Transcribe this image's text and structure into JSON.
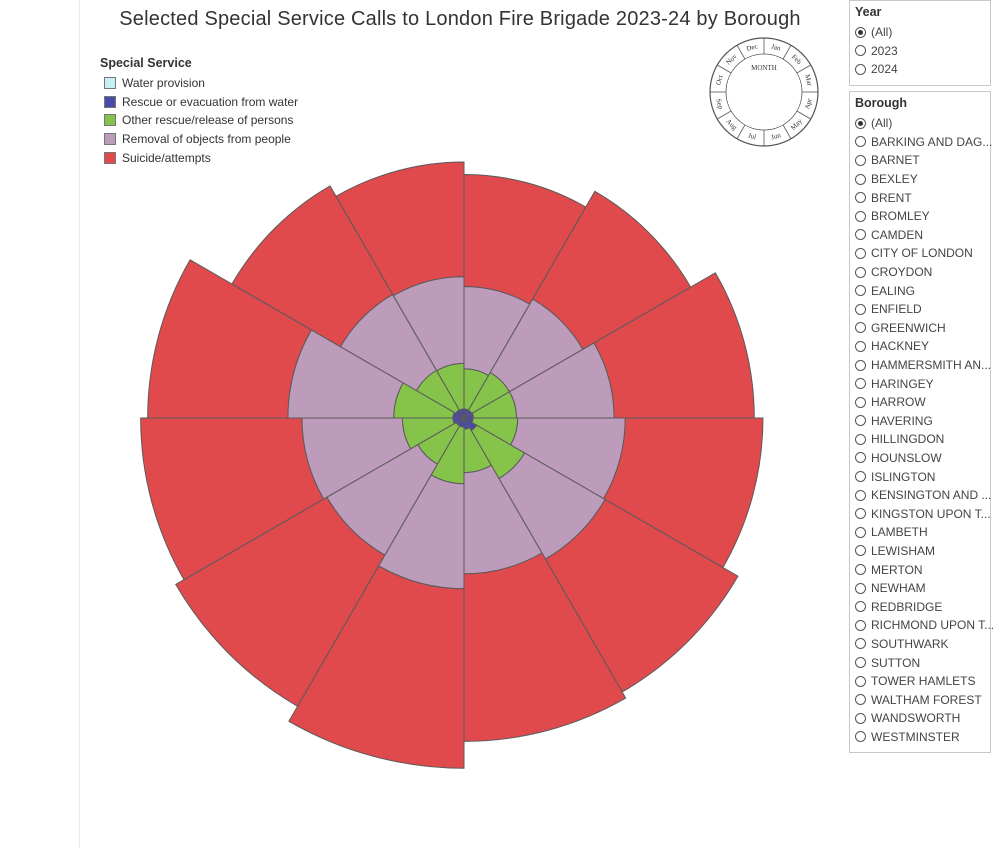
{
  "title": "Selected Special Service Calls to London Fire Brigade 2023-24 by Borough",
  "legend": {
    "title": "Special Service",
    "items": [
      {
        "label": "Water provision",
        "color": "#c8f0f4"
      },
      {
        "label": "Rescue or evacuation from water",
        "color": "#4a4aa8"
      },
      {
        "label": "Other rescue/release of persons",
        "color": "#86c34a"
      },
      {
        "label": "Removal of objects from people",
        "color": "#bd9bbb"
      },
      {
        "label": "Suicide/attempts",
        "color": "#e04a4d"
      }
    ]
  },
  "month_key": {
    "center_label": "MONTH",
    "months": [
      "Jan",
      "Feb",
      "Mar",
      "Apr",
      "May",
      "Jun",
      "Jul",
      "Aug",
      "Sep",
      "Oct",
      "Nov",
      "Dec"
    ]
  },
  "year_filter": {
    "title": "Year",
    "options": [
      "(All)",
      "2023",
      "2024"
    ],
    "selected": "(All)"
  },
  "borough_filter": {
    "title": "Borough",
    "options": [
      "(All)",
      "BARKING AND DAG...",
      "BARNET",
      "BEXLEY",
      "BRENT",
      "BROMLEY",
      "CAMDEN",
      "CITY OF LONDON",
      "CROYDON",
      "EALING",
      "ENFIELD",
      "GREENWICH",
      "HACKNEY",
      "HAMMERSMITH AN...",
      "HARINGEY",
      "HARROW",
      "HAVERING",
      "HILLINGDON",
      "HOUNSLOW",
      "ISLINGTON",
      "KENSINGTON AND ...",
      "KINGSTON UPON T...",
      "LAMBETH",
      "LEWISHAM",
      "MERTON",
      "NEWHAM",
      "REDBRIDGE",
      "RICHMOND UPON T...",
      "SOUTHWARK",
      "SUTTON",
      "TOWER HAMLETS",
      "WALTHAM FOREST",
      "WANDSWORTH",
      "WESTMINSTER"
    ],
    "selected": "(All)"
  },
  "chart_data": {
    "type": "stacked polar area",
    "categories": [
      "Jan",
      "Feb",
      "Mar",
      "Apr",
      "May",
      "Jun",
      "Jul",
      "Aug",
      "Sep",
      "Oct",
      "Nov",
      "Dec"
    ],
    "series": [
      {
        "name": "Water provision",
        "values": [
          0,
          0,
          0,
          0,
          0,
          0,
          0,
          0,
          0,
          0,
          0,
          0
        ]
      },
      {
        "name": "Rescue or evacuation from water",
        "values": [
          22,
          22,
          23,
          22,
          35,
          27,
          22,
          22,
          27,
          27,
          23,
          22
        ]
      },
      {
        "name": "Other rescue/release of persons",
        "values": [
          97,
          105,
          104,
          108,
          134,
          105,
          137,
          107,
          122,
          143,
          110,
          110
        ]
      },
      {
        "name": "Removal of objects from people",
        "values": [
          199,
          205,
          236,
          260,
          225,
          245,
          254,
          254,
          243,
          256,
          212,
          210
        ]
      },
      {
        "name": "Suicide/attempts",
        "values": [
          271,
          301,
          339,
          333,
          371,
          405,
          434,
          422,
          390,
          339,
          303,
          277
        ]
      }
    ]
  }
}
